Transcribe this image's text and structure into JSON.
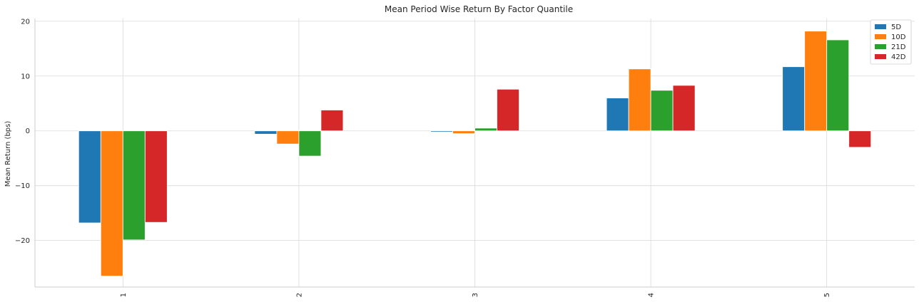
{
  "chart_data": {
    "type": "bar",
    "title": "Mean Period Wise Return By Factor Quantile",
    "xlabel": "",
    "ylabel": "Mean Return (bps)",
    "categories": [
      "1",
      "2",
      "3",
      "4",
      "5"
    ],
    "series": [
      {
        "name": "5D",
        "color": "#1f77b4",
        "values": [
          -16.8,
          -0.6,
          -0.2,
          6.0,
          11.7
        ]
      },
      {
        "name": "10D",
        "color": "#ff7f0e",
        "values": [
          -26.5,
          -2.4,
          -0.5,
          11.3,
          18.2
        ]
      },
      {
        "name": "21D",
        "color": "#2ca02c",
        "values": [
          -19.9,
          -4.6,
          0.5,
          7.4,
          16.6
        ]
      },
      {
        "name": "42D",
        "color": "#d62728",
        "values": [
          -16.7,
          3.8,
          7.6,
          8.3,
          -3.0
        ]
      }
    ],
    "ylim": [
      -28.5,
      20.5
    ],
    "yticks": [
      20,
      10,
      0,
      -10,
      -20
    ],
    "ytick_labels": [
      "20",
      "10",
      "0",
      "−10",
      "−20"
    ],
    "grid": true,
    "legend_position": "top-right"
  }
}
